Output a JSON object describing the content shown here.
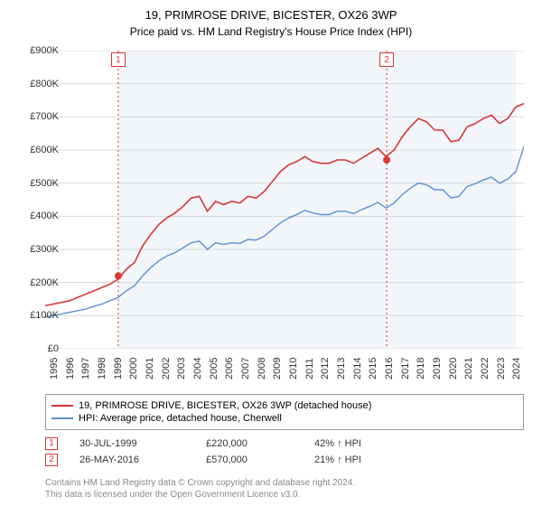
{
  "title": "19, PRIMROSE DRIVE, BICESTER, OX26 3WP",
  "subtitle": "Price paid vs. HM Land Registry's House Price Index (HPI)",
  "chart": {
    "type": "line",
    "background_color": "#ffffff",
    "plot_band_color": "#f2f6fb",
    "grid_color": "#d9d9d9",
    "ylim": [
      0,
      900000
    ],
    "ytick_step": 100000,
    "yticks": [
      "£0",
      "£100K",
      "£200K",
      "£300K",
      "£400K",
      "£500K",
      "£600K",
      "£700K",
      "£800K",
      "£900K"
    ],
    "x_start_year": 1995,
    "x_end_year": 2025,
    "xticks": [
      "1995",
      "1996",
      "1997",
      "1998",
      "1999",
      "2000",
      "2001",
      "2002",
      "2003",
      "2004",
      "2005",
      "2006",
      "2007",
      "2008",
      "2009",
      "2010",
      "2011",
      "2012",
      "2013",
      "2014",
      "2015",
      "2016",
      "2017",
      "2018",
      "2019",
      "2020",
      "2021",
      "2022",
      "2023",
      "2024"
    ],
    "event_line_color": "#d93636",
    "event_line_dash": "2,3",
    "series": [
      {
        "name": "19, PRIMROSE DRIVE, BICESTER, OX26 3WP (detached house)",
        "color": "#d93636",
        "line_width": 1.6,
        "values": [
          130,
          135,
          140,
          145,
          155,
          165,
          175,
          185,
          195,
          210,
          240,
          260,
          310,
          345,
          375,
          395,
          410,
          430,
          455,
          460,
          415,
          445,
          435,
          445,
          440,
          460,
          455,
          475,
          505,
          535,
          555,
          565,
          580,
          565,
          560,
          560,
          570,
          570,
          560,
          575,
          590,
          605,
          580,
          600,
          640,
          670,
          695,
          685,
          660,
          660,
          625,
          630,
          670,
          680,
          695,
          705,
          680,
          695,
          730,
          740
        ]
      },
      {
        "name": "HPI: Average price, detached house, Cherwell",
        "color": "#5b8fd6",
        "line_width": 1.4,
        "values": [
          95,
          100,
          105,
          110,
          115,
          120,
          128,
          135,
          145,
          155,
          175,
          190,
          220,
          245,
          265,
          280,
          290,
          305,
          320,
          325,
          300,
          320,
          315,
          320,
          318,
          330,
          328,
          340,
          360,
          380,
          395,
          405,
          418,
          410,
          405,
          405,
          415,
          415,
          408,
          420,
          430,
          442,
          425,
          440,
          465,
          485,
          500,
          495,
          480,
          480,
          455,
          460,
          490,
          498,
          510,
          518,
          500,
          512,
          535,
          610
        ]
      }
    ],
    "sale_events": [
      {
        "marker": "1",
        "year": 1999.58,
        "price": 220000
      },
      {
        "marker": "2",
        "year": 2016.4,
        "price": 570000
      }
    ]
  },
  "legend": {
    "series_1": "19, PRIMROSE DRIVE, BICESTER, OX26 3WP (detached house)",
    "series_2": "HPI: Average price, detached house, Cherwell"
  },
  "sales": [
    {
      "marker": "1",
      "date": "30-JUL-1999",
      "price": "£220,000",
      "delta": "42% ↑ HPI",
      "color": "#d93636"
    },
    {
      "marker": "2",
      "date": "26-MAY-2016",
      "price": "£570,000",
      "delta": "21% ↑ HPI",
      "color": "#d93636"
    }
  ],
  "footer_line1": "Contains HM Land Registry data © Crown copyright and database right 2024.",
  "footer_line2": "This data is licensed under the Open Government Licence v3.0.",
  "colors": {
    "text": "#333333",
    "muted": "#888888",
    "border": "#999999"
  },
  "layout": {
    "sales_col_widths": {
      "date": 140,
      "price": 120,
      "delta": 120
    }
  }
}
